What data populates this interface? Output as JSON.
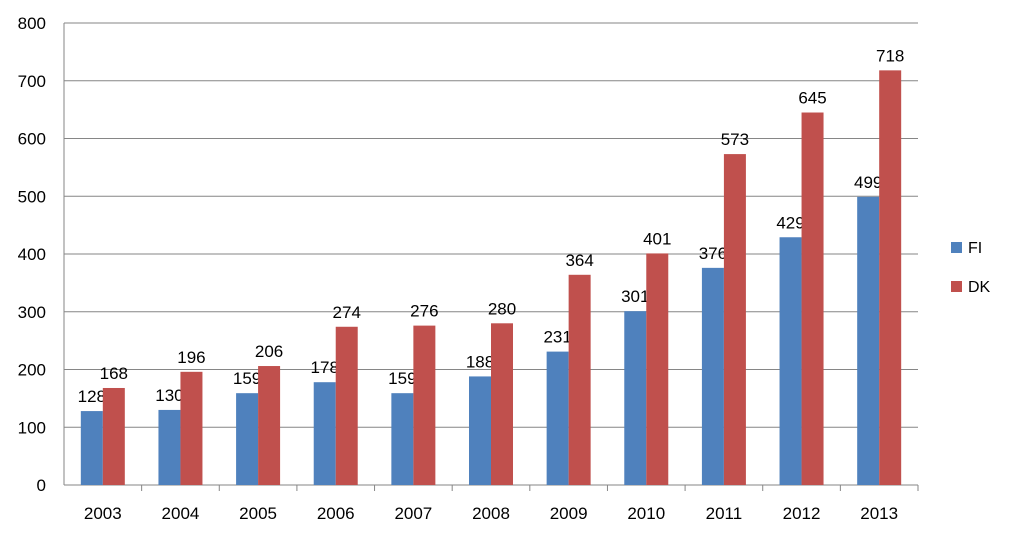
{
  "chart_data": {
    "type": "bar",
    "categories": [
      "2003",
      "2004",
      "2005",
      "2006",
      "2007",
      "2008",
      "2009",
      "2010",
      "2011",
      "2012",
      "2013"
    ],
    "series": [
      {
        "name": "FI",
        "color": "#4F81BD",
        "values": [
          128,
          130,
          159,
          178,
          159,
          188,
          231,
          301,
          376,
          429,
          499
        ]
      },
      {
        "name": "DK",
        "color": "#C0504D",
        "values": [
          168,
          196,
          206,
          274,
          276,
          280,
          364,
          401,
          573,
          645,
          718
        ]
      }
    ],
    "title": "",
    "xlabel": "",
    "ylabel": "",
    "ylim": [
      0,
      800
    ],
    "yticks": [
      0,
      100,
      200,
      300,
      400,
      500,
      600,
      700,
      800
    ],
    "grid": true,
    "legend": "right",
    "data_labels": true
  }
}
